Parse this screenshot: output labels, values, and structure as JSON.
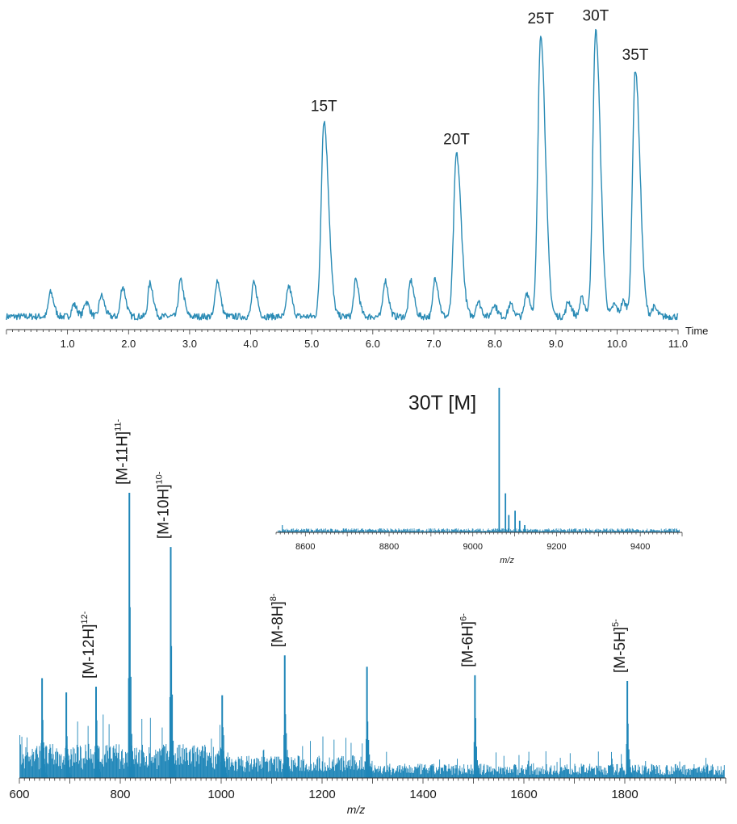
{
  "colors": {
    "trace": "#2a8bb5",
    "stick": "#1f86b8",
    "axis": "#333333",
    "text": "#1a1a1a"
  },
  "chart_data": [
    {
      "id": "chromatogram",
      "type": "line",
      "xlabel": "Time",
      "xlim": [
        0,
        11.0
      ],
      "ylim": [
        0,
        100
      ],
      "x_ticks": [
        "1.0",
        "2.0",
        "3.0",
        "4.0",
        "5.0",
        "6.0",
        "7.0",
        "8.0",
        "9.0",
        "10.0",
        "11.0"
      ],
      "baseline": 3,
      "peaks": [
        {
          "label": "15T",
          "x": 5.2,
          "y": 68
        },
        {
          "label": "20T",
          "x": 7.37,
          "y": 57
        },
        {
          "label": "25T",
          "x": 8.75,
          "y": 97
        },
        {
          "label": "30T",
          "x": 9.65,
          "y": 98
        },
        {
          "label": "35T",
          "x": 10.3,
          "y": 85
        }
      ],
      "minor_peaks": [
        {
          "x": 0.72,
          "y": 11
        },
        {
          "x": 1.1,
          "y": 7
        },
        {
          "x": 1.3,
          "y": 8
        },
        {
          "x": 1.55,
          "y": 10
        },
        {
          "x": 1.9,
          "y": 13
        },
        {
          "x": 2.35,
          "y": 14
        },
        {
          "x": 2.85,
          "y": 15
        },
        {
          "x": 3.45,
          "y": 15
        },
        {
          "x": 4.05,
          "y": 14
        },
        {
          "x": 4.62,
          "y": 13
        },
        {
          "x": 5.72,
          "y": 15
        },
        {
          "x": 6.2,
          "y": 15
        },
        {
          "x": 6.62,
          "y": 15
        },
        {
          "x": 7.02,
          "y": 16
        },
        {
          "x": 7.72,
          "y": 8
        },
        {
          "x": 7.98,
          "y": 7
        },
        {
          "x": 8.25,
          "y": 7
        },
        {
          "x": 8.52,
          "y": 11
        },
        {
          "x": 9.2,
          "y": 8
        },
        {
          "x": 9.42,
          "y": 9
        },
        {
          "x": 9.95,
          "y": 7
        },
        {
          "x": 10.1,
          "y": 8
        },
        {
          "x": 10.6,
          "y": 6
        }
      ]
    },
    {
      "id": "mass-spectrum",
      "type": "bar",
      "xlabel": "m/z",
      "xlim": [
        600,
        2000
      ],
      "ylim": [
        0,
        100
      ],
      "x_ticks": [
        "600",
        "800",
        "1000",
        "1200",
        "1400",
        "1600",
        "1800"
      ],
      "peaks": [
        {
          "mz": 645,
          "intensity": 35
        },
        {
          "mz": 693,
          "intensity": 30
        },
        {
          "mz": 752,
          "intensity": 32,
          "label": "[M-12H]",
          "charge": "12-"
        },
        {
          "mz": 818,
          "intensity": 100,
          "label": "[M-11H]",
          "charge": "11-"
        },
        {
          "mz": 900,
          "intensity": 81,
          "label": "[M-10H]",
          "charge": "10-"
        },
        {
          "mz": 1002,
          "intensity": 29
        },
        {
          "mz": 1126,
          "intensity": 43,
          "label": "[M-8H]",
          "charge": "8-"
        },
        {
          "mz": 1289,
          "intensity": 39
        },
        {
          "mz": 1503,
          "intensity": 36,
          "label": "[M-6H]",
          "charge": "6-"
        },
        {
          "mz": 1805,
          "intensity": 34,
          "label": "[M-5H]",
          "charge": "5-"
        }
      ]
    },
    {
      "id": "inset-spectrum",
      "type": "bar",
      "title": "30T [M]",
      "xlabel": "m/z",
      "xlim": [
        8530,
        9500
      ],
      "ylim": [
        0,
        100
      ],
      "x_ticks": [
        "8600",
        "8800",
        "9000",
        "9200",
        "9400"
      ],
      "peaks": [
        {
          "mz": 9063,
          "intensity": 100
        },
        {
          "mz": 9078,
          "intensity": 27
        },
        {
          "mz": 9086,
          "intensity": 12
        },
        {
          "mz": 9101,
          "intensity": 15
        },
        {
          "mz": 9112,
          "intensity": 8
        },
        {
          "mz": 9124,
          "intensity": 5
        }
      ]
    }
  ]
}
